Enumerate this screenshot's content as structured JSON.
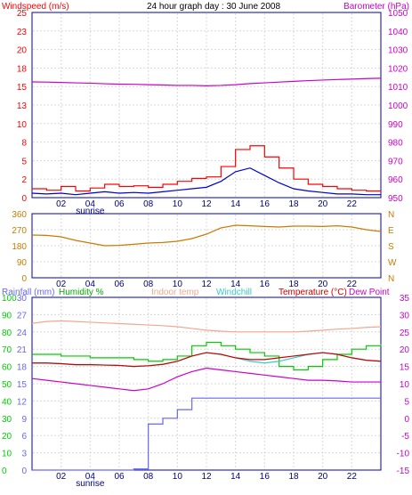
{
  "colors": {
    "background": "#ffffff",
    "plot_background": "#ffffff",
    "frame": "#0000aa",
    "grid": "#d8d8d8",
    "wind_speed": "#ff0000",
    "wind_avg": "#0000cc",
    "barometer": "#cc00cc",
    "direction": "#cc7a00",
    "rainfall": "#6666ff",
    "humidity": "#00cc00",
    "indoor_temp": "#f0a890",
    "windchill": "#33cccc",
    "temperature": "#cc0000",
    "dew_point": "#cc00cc"
  },
  "chart_data": [
    {
      "type": "line",
      "title": "24 hour graph day : 30 June 2008",
      "left_axis_title": "Windspeed (m/s)",
      "right_axis_title": "Barometer (hPa)",
      "left_ticks": [
        "0",
        "2",
        "5",
        "8",
        "10",
        "13",
        "15",
        "18",
        "20",
        "23",
        "25"
      ],
      "right_ticks": [
        "950",
        "960",
        "970",
        "980",
        "990",
        "1000",
        "1010",
        "1020",
        "1030",
        "1040",
        "1050"
      ],
      "x_ticks": [
        "02",
        "04",
        "06",
        "08",
        "10",
        "12",
        "14",
        "16",
        "18",
        "20",
        "22"
      ],
      "x_sub_label": "sunrise",
      "ylim_left": [
        0,
        25
      ],
      "ylim_right": [
        950,
        1050
      ],
      "x": [
        0,
        1,
        2,
        3,
        4,
        5,
        6,
        7,
        8,
        9,
        10,
        11,
        12,
        13,
        14,
        15,
        16,
        17,
        18,
        19,
        20,
        21,
        22,
        23,
        24
      ],
      "series": [
        {
          "key": "wind_gust",
          "values": [
            1.2,
            1.0,
            1.5,
            0.9,
            1.3,
            1.8,
            1.5,
            1.6,
            1.4,
            1.8,
            2.2,
            2.6,
            2.8,
            4.2,
            6.5,
            7.0,
            5.5,
            4.0,
            2.5,
            1.8,
            1.5,
            1.2,
            1.0,
            0.9,
            0.8
          ]
        },
        {
          "key": "wind_avg",
          "values": [
            0.6,
            0.5,
            0.6,
            0.4,
            0.6,
            0.8,
            0.6,
            0.7,
            0.6,
            0.8,
            1.0,
            1.2,
            1.4,
            2.2,
            3.5,
            4.0,
            3.0,
            2.0,
            1.2,
            0.9,
            0.7,
            0.5,
            0.5,
            0.4,
            0.4
          ]
        },
        {
          "key": "barometer",
          "values": [
            1012.5,
            1012.4,
            1012.2,
            1012.0,
            1011.8,
            1011.5,
            1011.3,
            1011.2,
            1011.0,
            1010.8,
            1010.6,
            1010.6,
            1010.4,
            1010.6,
            1011.0,
            1011.6,
            1012.0,
            1012.4,
            1012.8,
            1013.2,
            1013.5,
            1013.8,
            1014.0,
            1014.3,
            1014.5
          ]
        }
      ]
    },
    {
      "type": "scatter",
      "title": "",
      "left_ticks": [
        "0",
        "90",
        "180",
        "270",
        "360"
      ],
      "right_ticks": [
        "N",
        "W",
        "S",
        "E",
        "N"
      ],
      "x_ticks": [
        "02",
        "04",
        "06",
        "08",
        "10",
        "12",
        "14",
        "16",
        "18",
        "20",
        "22"
      ],
      "ylim": [
        0,
        360
      ],
      "x": [
        0,
        1,
        2,
        3,
        4,
        5,
        6,
        7,
        8,
        9,
        10,
        11,
        12,
        13,
        14,
        15,
        16,
        17,
        18,
        19,
        20,
        21,
        22,
        23,
        24
      ],
      "series": [
        {
          "key": "wind_direction",
          "values": [
            240,
            238,
            230,
            210,
            195,
            180,
            182,
            188,
            195,
            198,
            205,
            220,
            245,
            280,
            295,
            292,
            288,
            285,
            290,
            290,
            288,
            292,
            285,
            270,
            260
          ]
        }
      ]
    },
    {
      "type": "line",
      "title": "",
      "legend": [
        {
          "key": "rainfall",
          "label": "Rainfall (mm)"
        },
        {
          "key": "humidity",
          "label": "Humidity %"
        },
        {
          "key": "indoor_temp",
          "label": "Indoor temp"
        },
        {
          "key": "windchill",
          "label": "Windchill"
        },
        {
          "key": "temperature",
          "label": "Temperature (°C)"
        },
        {
          "key": "dew_point",
          "label": "Dew Point"
        }
      ],
      "left_ticks_pct": [
        "0",
        "10",
        "20",
        "30",
        "40",
        "50",
        "60",
        "70",
        "80",
        "90",
        "100"
      ],
      "left_ticks_mm": [
        "0",
        "3",
        "6",
        "9",
        "12",
        "15",
        "18",
        "21",
        "24",
        "27",
        "30"
      ],
      "right_ticks": [
        "-15",
        "-10",
        "-5",
        "0",
        "5",
        "10",
        "15",
        "20",
        "25",
        "30",
        "35"
      ],
      "x_ticks": [
        "02",
        "04",
        "06",
        "08",
        "10",
        "12",
        "14",
        "16",
        "18",
        "20",
        "22"
      ],
      "x_sub_label": "sunrise",
      "ylim_humidity": [
        0,
        100
      ],
      "ylim_rain": [
        0,
        30
      ],
      "ylim_temp": [
        -15,
        35
      ],
      "x": [
        0,
        1,
        2,
        3,
        4,
        5,
        6,
        7,
        8,
        9,
        10,
        11,
        12,
        13,
        14,
        15,
        16,
        17,
        18,
        19,
        20,
        21,
        22,
        23,
        24
      ],
      "series": [
        {
          "key": "rainfall",
          "values": [
            0,
            0,
            0,
            0,
            0,
            0,
            0,
            0.2,
            8.0,
            9.0,
            10.5,
            12.5,
            12.5,
            12.5,
            12.5,
            12.5,
            12.5,
            12.5,
            12.5,
            12.5,
            12.5,
            12.5,
            12.5,
            12.5,
            12.5
          ]
        },
        {
          "key": "humidity",
          "values": [
            67,
            67,
            66,
            66,
            65,
            65,
            65,
            64,
            63,
            64,
            66,
            72,
            74,
            72,
            70,
            68,
            66,
            60,
            58,
            60,
            64,
            67,
            70,
            72,
            73
          ]
        },
        {
          "key": "indoor_temp",
          "values": [
            27.5,
            28.0,
            28.2,
            28.0,
            27.8,
            27.6,
            27.4,
            27.2,
            27.0,
            26.8,
            26.5,
            26.0,
            25.5,
            25.2,
            25.0,
            25.0,
            25.0,
            25.0,
            25.0,
            25.2,
            25.5,
            25.8,
            26.0,
            26.3,
            26.5
          ]
        },
        {
          "key": "windchill",
          "values": [
            16.0,
            16.0,
            15.8,
            15.5,
            15.5,
            15.4,
            15.3,
            15.0,
            15.2,
            15.6,
            16.5,
            18.0,
            19.0,
            18.5,
            17.5,
            16.5,
            16.0,
            16.5,
            17.5,
            18.5,
            19.0,
            18.5,
            17.5,
            16.8,
            16.5
          ]
        },
        {
          "key": "temperature",
          "values": [
            16.0,
            16.0,
            15.8,
            15.5,
            15.5,
            15.4,
            15.3,
            15.0,
            15.2,
            15.6,
            16.5,
            18.0,
            19.0,
            18.5,
            17.5,
            17.0,
            17.0,
            17.5,
            18.0,
            18.5,
            19.0,
            18.5,
            17.5,
            16.8,
            16.5
          ]
        },
        {
          "key": "dew_point",
          "values": [
            11.5,
            11.0,
            10.5,
            10.0,
            9.5,
            9.0,
            8.5,
            8.0,
            8.5,
            10.0,
            12.0,
            13.5,
            14.5,
            14.0,
            13.5,
            13.0,
            12.5,
            12.0,
            11.5,
            11.0,
            11.0,
            10.8,
            10.5,
            10.5,
            10.5
          ]
        }
      ]
    }
  ]
}
